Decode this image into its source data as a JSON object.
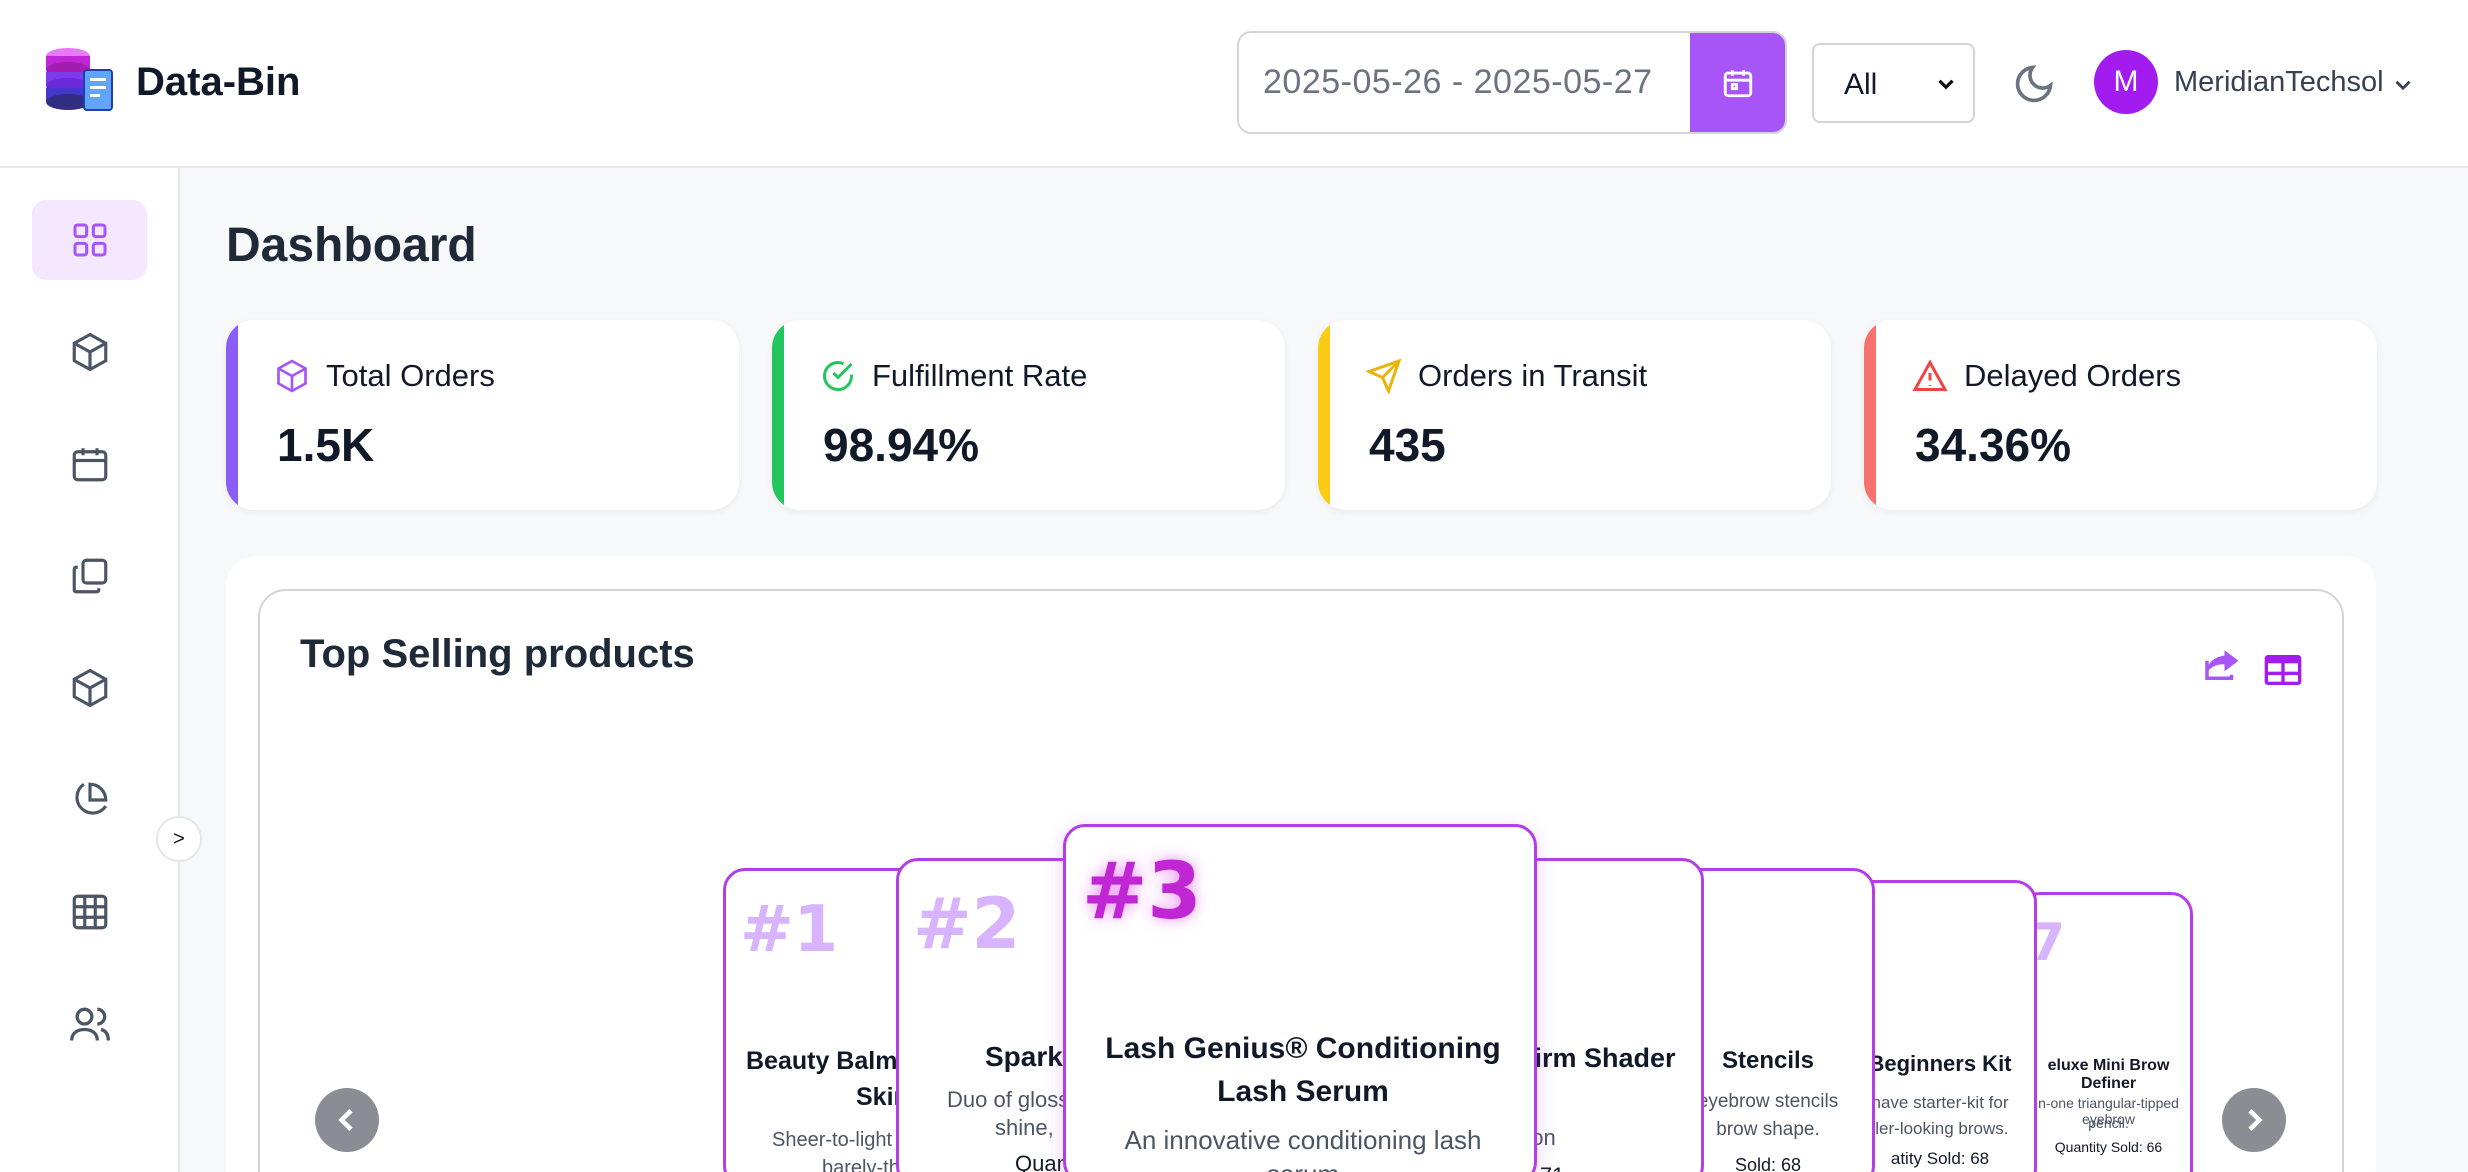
{
  "app": {
    "brand": "Data-Bin"
  },
  "header": {
    "date_range": "2025-05-26 - 2025-05-27",
    "filter_value": "All",
    "user_initial": "M",
    "user_name": "MeridianTechsol"
  },
  "sidebar": {
    "items": [
      {
        "icon": "dashboard-grid-icon",
        "active": true
      },
      {
        "icon": "box-icon"
      },
      {
        "icon": "calendar-icon"
      },
      {
        "icon": "copy-icon"
      },
      {
        "icon": "package-icon"
      },
      {
        "icon": "pie-chart-icon"
      },
      {
        "icon": "table-icon"
      },
      {
        "icon": "users-icon"
      }
    ],
    "collapse_label": ">"
  },
  "page": {
    "title": "Dashboard"
  },
  "stats": [
    {
      "label": "Total Orders",
      "value": "1.5K",
      "color": "#8b5cf6",
      "icon": "box-icon"
    },
    {
      "label": "Fulfillment Rate",
      "value": "98.94%",
      "color": "#22c55e",
      "icon": "check-circle-icon"
    },
    {
      "label": "Orders in Transit",
      "value": "435",
      "color": "#facc15",
      "icon": "send-icon"
    },
    {
      "label": "Delayed Orders",
      "value": "34.36%",
      "color": "#f87171",
      "icon": "alert-triangle-icon"
    }
  ],
  "top_selling": {
    "title": "Top Selling products",
    "products": [
      {
        "rank": "#1",
        "name": "Beauty Balm S",
        "name2": "Skin",
        "desc": "Sheer-to-light c",
        "desc2": "barely-th"
      },
      {
        "rank": "#2",
        "name": "Sparkl",
        "desc": "Duo of gloss",
        "desc2": "shine,",
        "qty": "Quan"
      },
      {
        "rank": "#3",
        "name": "Lash Genius® Conditioning Lash Serum",
        "desc": "An innovative conditioning lash serum"
      },
      {
        "name": "irm Shader",
        "desc": "tion",
        "qty": "t: 71"
      },
      {
        "name": "Stencils",
        "desc": "eyebrow stencils",
        "desc2": "brow shape.",
        "qty": "Sold: 68"
      },
      {
        "name": "Beginners Kit",
        "desc": "have starter-kit for",
        "desc2": "ller-looking brows.",
        "qty": "atity Sold: 68"
      },
      {
        "rank": "7",
        "name": "eluxe Mini Brow Definer",
        "desc": "n-one triangular-tipped eyebrow",
        "desc2": "pencil.",
        "qty": "Quantity Sold: 66"
      }
    ]
  },
  "colors": {
    "accent": "#a855f7",
    "card_border": "#b23ee8"
  }
}
